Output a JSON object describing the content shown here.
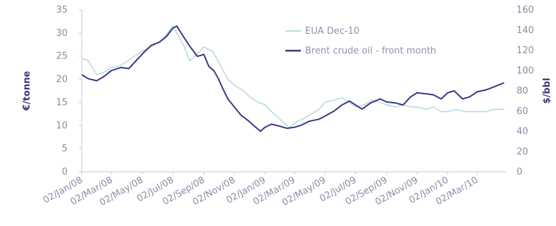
{
  "chart_data": {
    "type": "line",
    "title": "",
    "ylabel_left": "€/tonne",
    "ylabel_right": "$/bbl",
    "ylim_left": [
      0,
      35
    ],
    "ylim_right": [
      0,
      160
    ],
    "yticks_left": [
      "0",
      "5",
      "10",
      "15",
      "20",
      "25",
      "30",
      "35"
    ],
    "yticks_right": [
      "0",
      "20",
      "40",
      "60",
      "80",
      "100",
      "120",
      "140",
      "160"
    ],
    "xlim": [
      "2008-01-02",
      "2010-04-30"
    ],
    "xticks": [
      {
        "label": "02/Jan/08",
        "date": "2008-01-02"
      },
      {
        "label": "02/Mar/08",
        "date": "2008-03-02"
      },
      {
        "label": "02/May/08",
        "date": "2008-05-02"
      },
      {
        "label": "02/Jul/08",
        "date": "2008-07-02"
      },
      {
        "label": "02/Sep/08",
        "date": "2008-09-02"
      },
      {
        "label": "02/Nov/08",
        "date": "2008-11-02"
      },
      {
        "label": "02/Jan/09",
        "date": "2009-01-02"
      },
      {
        "label": "02/Mar/09",
        "date": "2009-03-02"
      },
      {
        "label": "02/May/09",
        "date": "2009-05-02"
      },
      {
        "label": "02/Jul/09",
        "date": "2009-07-02"
      },
      {
        "label": "02/Sep/09",
        "date": "2009-09-02"
      },
      {
        "label": "02/Nov/09",
        "date": "2009-11-02"
      },
      {
        "label": "02/Jan/10",
        "date": "2010-01-02"
      },
      {
        "label": "02/Mar/10",
        "date": "2010-03-02"
      }
    ],
    "legend_position": "top-right",
    "series": [
      {
        "name": "EUA Dec-10",
        "axis": "left",
        "color": "#b6dcdc",
        "points": [
          [
            "2008-01-02",
            24.5
          ],
          [
            "2008-01-15",
            24.0
          ],
          [
            "2008-02-01",
            21.0
          ],
          [
            "2008-02-15",
            21.5
          ],
          [
            "2008-03-01",
            22.5
          ],
          [
            "2008-03-20",
            23.0
          ],
          [
            "2008-04-10",
            24.5
          ],
          [
            "2008-05-01",
            26.0
          ],
          [
            "2008-05-20",
            27.0
          ],
          [
            "2008-06-10",
            28.5
          ],
          [
            "2008-06-25",
            30.5
          ],
          [
            "2008-07-02",
            31.5
          ],
          [
            "2008-07-10",
            30.0
          ],
          [
            "2008-07-25",
            27.0
          ],
          [
            "2008-08-05",
            24.0
          ],
          [
            "2008-08-20",
            25.5
          ],
          [
            "2008-09-02",
            27.0
          ],
          [
            "2008-09-20",
            26.0
          ],
          [
            "2008-10-05",
            23.0
          ],
          [
            "2008-10-20",
            20.0
          ],
          [
            "2008-11-05",
            18.5
          ],
          [
            "2008-11-20",
            17.5
          ],
          [
            "2008-12-05",
            16.0
          ],
          [
            "2008-12-20",
            15.0
          ],
          [
            "2009-01-02",
            14.5
          ],
          [
            "2009-01-20",
            12.5
          ],
          [
            "2009-02-05",
            11.0
          ],
          [
            "2009-02-20",
            9.5
          ],
          [
            "2009-03-02",
            10.5
          ],
          [
            "2009-03-20",
            11.5
          ],
          [
            "2009-04-05",
            12.5
          ],
          [
            "2009-04-20",
            13.5
          ],
          [
            "2009-05-02",
            15.0
          ],
          [
            "2009-05-20",
            15.5
          ],
          [
            "2009-06-05",
            16.0
          ],
          [
            "2009-06-20",
            15.0
          ],
          [
            "2009-07-02",
            14.0
          ],
          [
            "2009-07-20",
            14.5
          ],
          [
            "2009-08-05",
            15.5
          ],
          [
            "2009-08-20",
            15.0
          ],
          [
            "2009-09-02",
            14.5
          ],
          [
            "2009-09-20",
            14.0
          ],
          [
            "2009-10-05",
            14.5
          ],
          [
            "2009-10-20",
            14.0
          ],
          [
            "2009-11-02",
            14.0
          ],
          [
            "2009-11-20",
            13.5
          ],
          [
            "2009-12-05",
            14.0
          ],
          [
            "2009-12-20",
            13.0
          ],
          [
            "2010-01-02",
            13.0
          ],
          [
            "2010-01-20",
            13.5
          ],
          [
            "2010-02-05",
            13.0
          ],
          [
            "2010-02-20",
            13.0
          ],
          [
            "2010-03-02",
            13.0
          ],
          [
            "2010-03-20",
            13.0
          ],
          [
            "2010-04-05",
            13.5
          ],
          [
            "2010-04-25",
            13.5
          ]
        ]
      },
      {
        "name": "Brent crude oil - front month",
        "axis": "right",
        "color": "#3d3586",
        "points": [
          [
            "2008-01-02",
            96
          ],
          [
            "2008-01-15",
            92
          ],
          [
            "2008-02-01",
            90
          ],
          [
            "2008-02-15",
            94
          ],
          [
            "2008-03-01",
            100
          ],
          [
            "2008-03-20",
            103
          ],
          [
            "2008-04-05",
            102
          ],
          [
            "2008-04-20",
            110
          ],
          [
            "2008-05-05",
            118
          ],
          [
            "2008-05-20",
            125
          ],
          [
            "2008-06-05",
            128
          ],
          [
            "2008-06-20",
            134
          ],
          [
            "2008-07-02",
            142
          ],
          [
            "2008-07-10",
            144
          ],
          [
            "2008-07-20",
            136
          ],
          [
            "2008-08-05",
            124
          ],
          [
            "2008-08-20",
            114
          ],
          [
            "2008-09-02",
            116
          ],
          [
            "2008-09-12",
            104
          ],
          [
            "2008-09-22",
            100
          ],
          [
            "2008-10-01",
            92
          ],
          [
            "2008-10-10",
            82
          ],
          [
            "2008-10-20",
            72
          ],
          [
            "2008-11-02",
            64
          ],
          [
            "2008-11-15",
            56
          ],
          [
            "2008-12-01",
            50
          ],
          [
            "2008-12-10",
            46
          ],
          [
            "2008-12-24",
            40
          ],
          [
            "2009-01-02",
            44
          ],
          [
            "2009-01-15",
            47
          ],
          [
            "2009-02-01",
            45
          ],
          [
            "2009-02-15",
            43
          ],
          [
            "2009-03-02",
            44
          ],
          [
            "2009-03-15",
            46
          ],
          [
            "2009-04-01",
            50
          ],
          [
            "2009-04-20",
            52
          ],
          [
            "2009-05-02",
            55
          ],
          [
            "2009-05-20",
            60
          ],
          [
            "2009-06-05",
            66
          ],
          [
            "2009-06-20",
            70
          ],
          [
            "2009-07-02",
            66
          ],
          [
            "2009-07-15",
            62
          ],
          [
            "2009-08-01",
            68
          ],
          [
            "2009-08-20",
            72
          ],
          [
            "2009-09-02",
            69
          ],
          [
            "2009-09-20",
            68
          ],
          [
            "2009-10-05",
            66
          ],
          [
            "2009-10-20",
            74
          ],
          [
            "2009-11-02",
            78
          ],
          [
            "2009-11-20",
            77
          ],
          [
            "2009-12-05",
            76
          ],
          [
            "2009-12-20",
            72
          ],
          [
            "2010-01-02",
            78
          ],
          [
            "2010-01-15",
            80
          ],
          [
            "2010-02-01",
            72
          ],
          [
            "2010-02-15",
            74
          ],
          [
            "2010-03-02",
            79
          ],
          [
            "2010-03-20",
            81
          ],
          [
            "2010-04-05",
            84
          ],
          [
            "2010-04-25",
            88
          ]
        ]
      }
    ]
  }
}
